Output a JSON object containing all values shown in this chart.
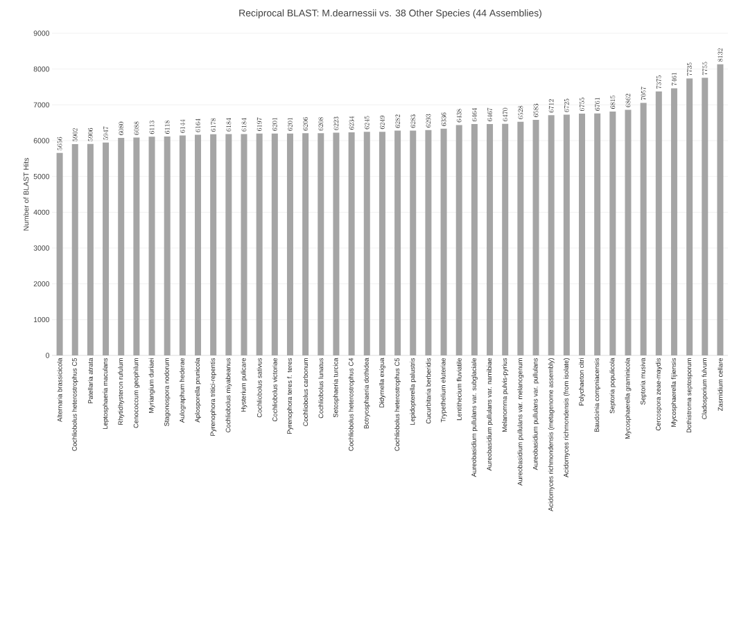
{
  "chart_data": {
    "type": "bar",
    "title": "Reciprocal BLAST: M.dearnessii vs. 38 Other Species (44 Assemblies)",
    "ylabel": "Number of BLAST Hits",
    "categories": [
      "Alternaria brassicicola",
      "Cochliobolus heterostrophus C5",
      "Patellaria atrata",
      "Leptosphaeria maculans",
      "Rhytidhysteron rufulum",
      "Cenococcum geophilum",
      "Myriangium duriaei",
      "Stagonospora nodorum",
      "Aulographum hederae",
      "Aplosporella prunicola",
      "Pyrenophora tritici-repentis",
      "Cochliobolus miyabeanus",
      "Hysterium pulicare",
      "Cochliobolus sativus",
      "Cochliobolus victoriae",
      "Pyrenophora teres f. teres",
      "Cochliobolus carbonum",
      "Cochliobolus lunatus",
      "Setosphaeria turcica",
      "Cochliobolus heterostrophus C4",
      "Botryosphaeria dothidea",
      "Didymella exigua",
      "Cochliobolus heterostrophus C5",
      "Lepidopterella palustris",
      "Cucurbitaria berberidis",
      "Trypethelium eluteriae",
      "Lentithecium fluviatile",
      "Aureobasidium pullulans var. subglaciale",
      "Aureobasidium pullulans var. namibiae",
      "Melanomma pulvis-pyrius",
      "Aureobasidium pullulans var. melanogenum",
      "Aureobasidium pullulans var. pullulans",
      "Acidomyces richmondensis (metagenome assembly)",
      "Acidomyces richmondensis (from isolate)",
      "Polychaeton citri",
      "Baudoinia compniacensis",
      "Septoria populicola",
      "Mycosphaerella graminicola",
      "Septoria musiva",
      "Cercospora zeae-maydis",
      "Mycosphaerella fijiensis",
      "Dothistroma septosporum",
      "Cladosporium fulvum",
      "Zasmidium cellare"
    ],
    "values": [
      5656,
      5902,
      5906,
      5947,
      6080,
      6088,
      6113,
      6118,
      6144,
      6164,
      6178,
      6184,
      6184,
      6197,
      6201,
      6201,
      6206,
      6208,
      6223,
      6234,
      6245,
      6249,
      6282,
      6283,
      6293,
      6336,
      6438,
      6464,
      6467,
      6470,
      6528,
      6583,
      6712,
      6725,
      6755,
      6761,
      6815,
      6862,
      7057,
      7375,
      7461,
      7735,
      7755,
      8132
    ],
    "color": "#a5a5a5",
    "ylim": [
      0,
      9000
    ],
    "yticks": [
      0,
      1000,
      2000,
      3000,
      4000,
      5000,
      6000,
      7000,
      8000,
      9000
    ],
    "grid": "y",
    "data_labels": true
  }
}
